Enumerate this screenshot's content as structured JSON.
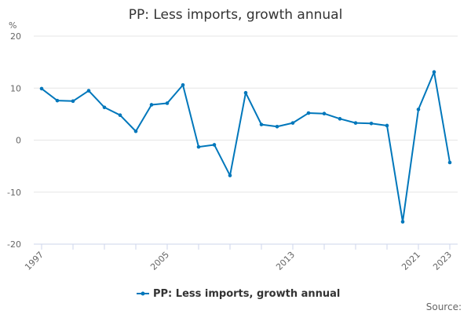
{
  "chart_data": {
    "type": "line",
    "title": "PP: Less imports, growth annual",
    "ylabel": "%",
    "xlabel": "",
    "x": [
      1997,
      1998,
      1999,
      2000,
      2001,
      2002,
      2003,
      2004,
      2005,
      2006,
      2007,
      2008,
      2009,
      2010,
      2011,
      2012,
      2013,
      2014,
      2015,
      2016,
      2017,
      2018,
      2019,
      2020,
      2021,
      2022,
      2023
    ],
    "series": [
      {
        "name": "PP: Less imports, growth annual",
        "color": "#0077bb",
        "values": [
          9.9,
          7.6,
          7.5,
          9.5,
          6.3,
          4.8,
          1.7,
          6.8,
          7.1,
          10.6,
          -1.3,
          -0.9,
          -6.8,
          9.1,
          3.0,
          2.6,
          3.3,
          5.2,
          5.1,
          4.1,
          3.3,
          3.2,
          2.8,
          -15.7,
          5.9,
          13.1,
          -4.3
        ]
      }
    ],
    "ylim": [
      -20,
      20
    ],
    "yticks": [
      -20,
      -10,
      0,
      10,
      20
    ],
    "xtick_labels": [
      "1997",
      "2005",
      "2013",
      "2021",
      "2023"
    ],
    "grid": true,
    "legend": "bottom-center"
  },
  "source_label": "Source:"
}
